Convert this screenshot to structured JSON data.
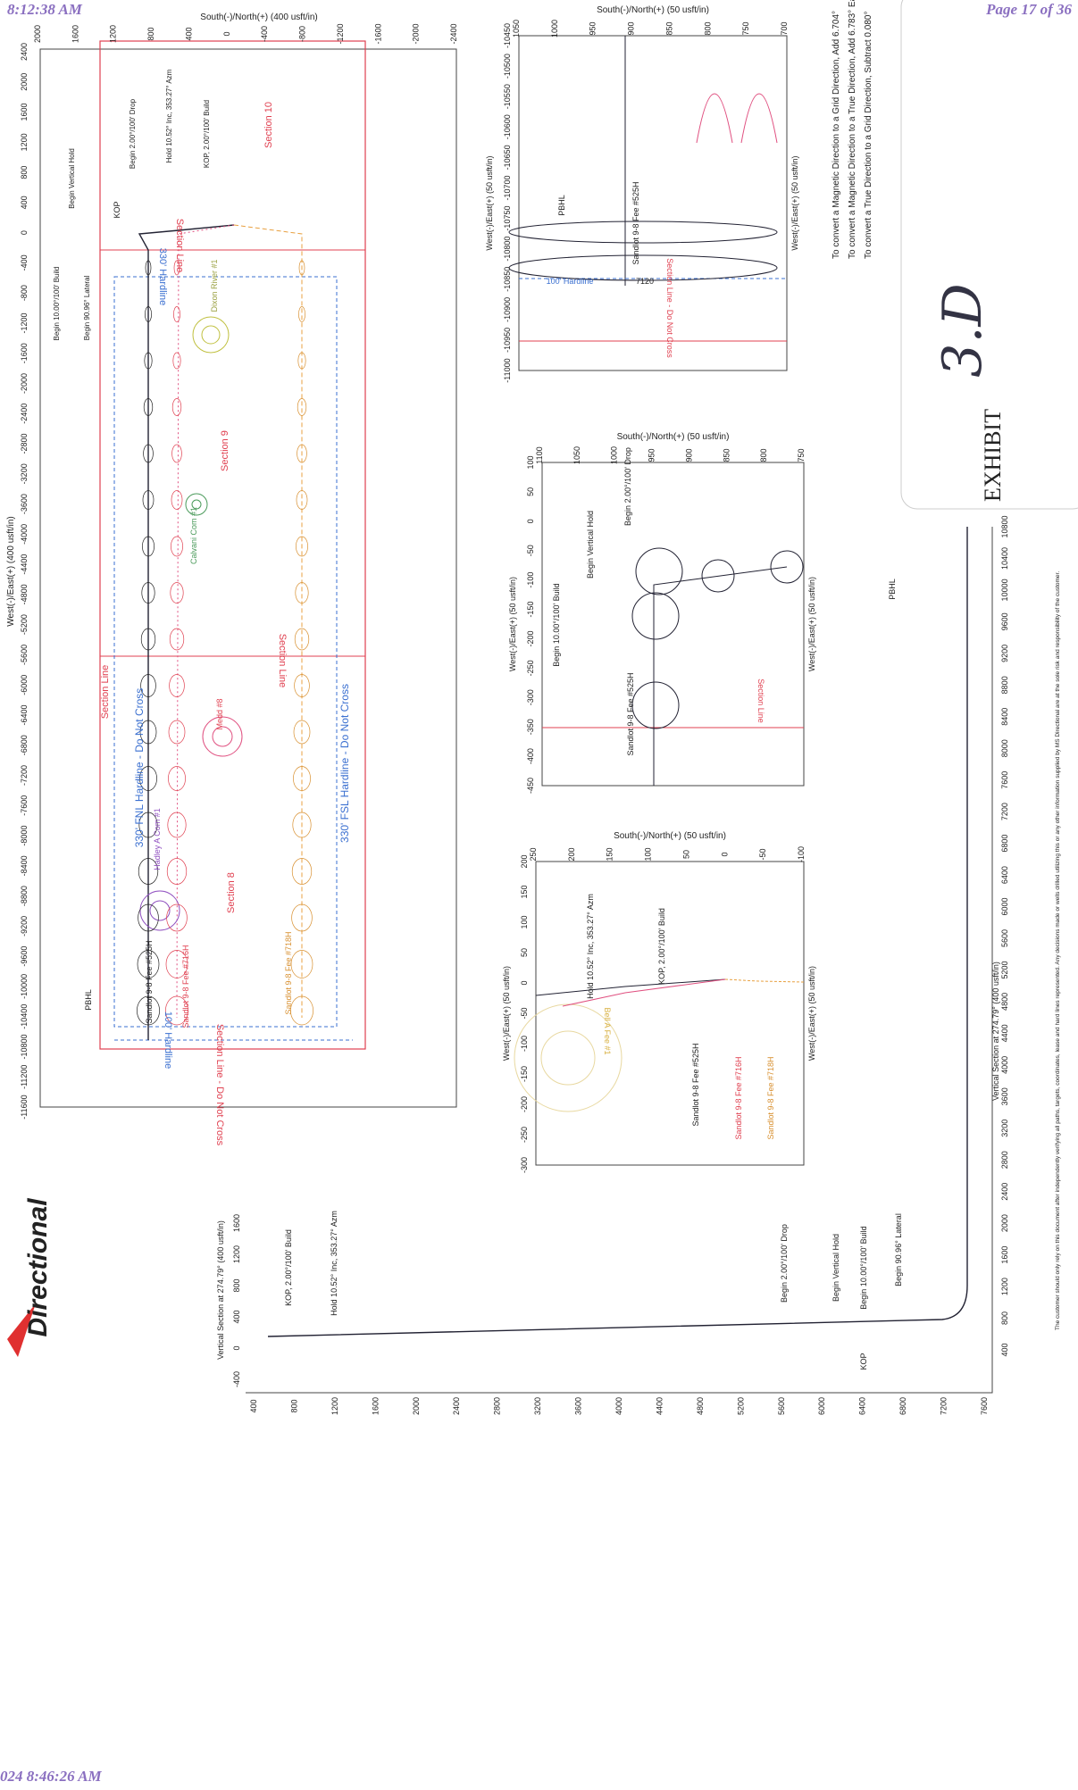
{
  "header": {
    "time": "8:12:38 AM",
    "page": "Page 17 of 36",
    "footer_time": "024 8:46:26 AM",
    "logo": "Directional"
  },
  "plan": {
    "ns_label": "South(-)/North(+) (400 usft/in)",
    "we_label": "West(-)/East(+) (400 usft/in)",
    "ns_ticks": [
      2000,
      1600,
      1200,
      800,
      400,
      0,
      -400,
      -800,
      -1200,
      -1600,
      -2000,
      -2400
    ],
    "we_ticks": [
      2400,
      2000,
      1600,
      1200,
      800,
      400,
      0,
      -400,
      -800,
      -1200,
      -1600,
      -2000,
      -2400,
      -2800,
      -3200,
      -3600,
      -4000,
      -4400,
      -4800,
      -5200,
      -5600,
      -6000,
      -6400,
      -6800,
      -7200,
      -7600,
      -8000,
      -8400,
      -8800,
      -9200,
      -9600,
      -10000,
      -10400,
      -10800,
      -11200,
      -11600
    ],
    "labels": [
      "Section 10",
      "Section 9",
      "Section 8",
      "Section Line",
      "330' FNL Hardline - Do Not Cross",
      "330' FSL Hardline - Do Not Cross",
      "330' Hardline",
      "100' Hardline",
      "Section Line - Do Not Cross",
      "PBHL",
      "KOP",
      "Begin Vertical Hold",
      "Begin 2.00°/100' Drop",
      "Hold 10.52° Inc, 353.27° Azm",
      "KOP, 2.00°/100' Build",
      "Begin 10.00°/100' Build",
      "Begin 90.96° Lateral",
      "Sandlot 9-8 Fee #525H",
      "Sandlot 9-8 Fee #716H",
      "Sandlot 9-8 Fee #718H",
      "Calvani Com #1",
      "Medd #8",
      "Hadley A Com #1",
      "Dixon River #1"
    ]
  },
  "insets": [
    {
      "ns_label": "South(-)/North(+) (50 usft/in)",
      "we_label": "West(-)/East(+) (50 usft/in)",
      "ns_ticks": [
        1050,
        1000,
        950,
        900,
        850,
        800,
        750,
        700
      ],
      "we_ticks": [
        -10450,
        -10500,
        -10550,
        -10600,
        -10650,
        -10700,
        -10750,
        -10800,
        -10850,
        -10900,
        -10950,
        -11000
      ],
      "labels": [
        "PBHL",
        "Sandlot 9-8 Fee #525H",
        "100' Hardline",
        "7120",
        "Section Line - Do Not Cross"
      ]
    },
    {
      "ns_label": "South(-)/North(+) (50 usft/in)",
      "we_label": "West(-)/East(+) (50 usft/in)",
      "ns_ticks": [
        1100,
        1050,
        1000,
        950,
        900,
        850,
        800,
        750
      ],
      "we_ticks": [
        100,
        50,
        0,
        -50,
        -100,
        -150,
        -200,
        -250,
        -300,
        -350,
        -400,
        -450
      ],
      "labels": [
        "Begin 2.00°/100' Drop",
        "Begin Vertical Hold",
        "Begin 10.00°/100' Build",
        "Sandlot 9-8 Fee #525H",
        "Section Line"
      ]
    },
    {
      "ns_label": "South(-)/North(+) (50 usft/in)",
      "we_label": "West(-)/East(+) (50 usft/in)",
      "ns_ticks": [
        250,
        200,
        150,
        100,
        50,
        0,
        -50,
        -100
      ],
      "we_ticks": [
        200,
        150,
        100,
        50,
        0,
        -50,
        -100,
        -150,
        -200,
        -250,
        -300
      ],
      "labels": [
        "Hold 10.52° Inc, 353.27° Azm",
        "KOP, 2.00°/100' Build",
        "Sandlot 9-8 Fee #525H",
        "Sandlot 9-8 Fee #716H",
        "Sandlot 9-8 Fee #718H",
        "Bell A Fee #1"
      ]
    }
  ],
  "vsection": {
    "x_label": "Vertical Section at 274.79° (400 usft/in)",
    "left_ticks": [
      -400,
      0,
      400,
      800,
      1200,
      1600
    ],
    "tvd_ticks": [
      400,
      800,
      1200,
      1600,
      2000,
      2400,
      2800,
      3200,
      3600,
      4000,
      4400,
      4800,
      5200,
      5600,
      6000,
      6400,
      6800,
      7200,
      7600
    ],
    "vs_ticks": [
      400,
      800,
      1200,
      1600,
      2000,
      2400,
      2800,
      3200,
      3600,
      4000,
      4400,
      4800,
      5200,
      5600,
      6000,
      6400,
      6800,
      7200,
      7600,
      8000,
      8400,
      8800,
      9200,
      9600,
      10000,
      10400,
      10800
    ],
    "labels": [
      "KOP, 2.00°/100' Build",
      "Hold 10.52° Inc, 353.27° Azm",
      "Begin 2.00°/100' Drop",
      "Begin Vertical Hold",
      "Begin 10.00°/100' Build",
      "Begin 90.96° Lateral",
      "KOP",
      "PBHL"
    ]
  },
  "notes": [
    "To convert a Magnetic Direction to a Grid Direction, Add 6.704°",
    "To convert a Magnetic Direction to a True Direction, Add 6.783° East",
    "To convert a True Direction to a Grid Direction, Subtract 0.080°"
  ],
  "exhibit": {
    "title": "EXHIBIT",
    "handwritten": "3.D"
  },
  "disclaimer": "The customer should only rely on this document after independently verifying all paths, targets, coordinates, lease and hard lines represented. Any decisions made or wells drilled utilizing this or any other information supplied by MS Directional are at the sole risk and responsibility of the customer."
}
